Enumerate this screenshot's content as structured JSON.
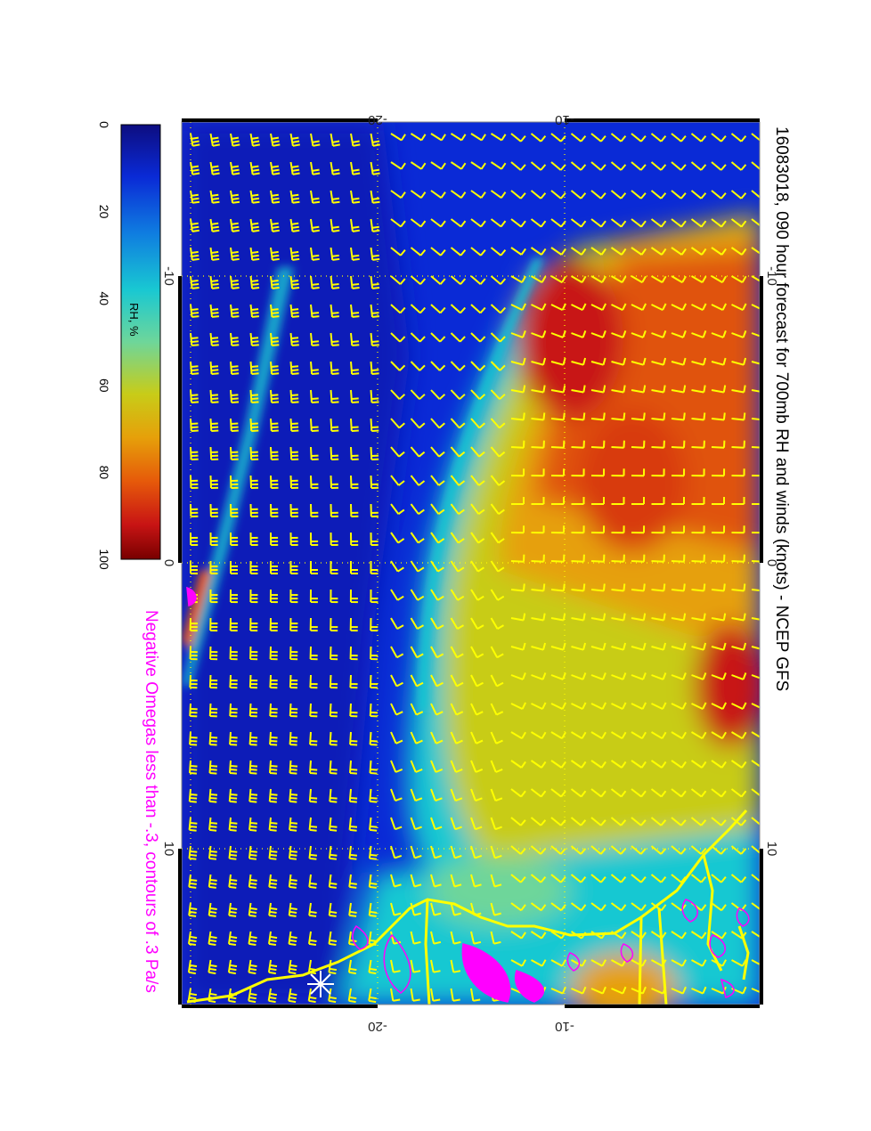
{
  "title": "16083018, 090 hour forecast for 700mb RH and winds (knots) - NCEP GFS",
  "subtitle": "Negative Omegas less than -.3, contours of .3 Pa/s",
  "colors": {
    "subtitle": "#ff00ff",
    "barbs": "#ffff00",
    "coastline": "#ffff00",
    "omega_contours": "#ff00ff"
  },
  "colorbar": {
    "label": "RH, %",
    "ticks": [
      "0",
      "20",
      "40",
      "60",
      "80",
      "100"
    ],
    "stops": [
      "#0d0d80",
      "#0a2ad6",
      "#0f7de0",
      "#19c8d2",
      "#6ed69a",
      "#c8cc18",
      "#e6a00a",
      "#e65a0a",
      "#c81414",
      "#780000"
    ]
  },
  "axes": {
    "top_ticks": [
      "-20",
      "-10"
    ],
    "bottom_ticks": [
      "-20",
      "-10"
    ],
    "left_ticks": [
      "-10",
      "0",
      "10"
    ],
    "right_ticks": [
      "-10",
      "0",
      "10"
    ]
  },
  "icons": [
    "station-star-icon"
  ]
}
